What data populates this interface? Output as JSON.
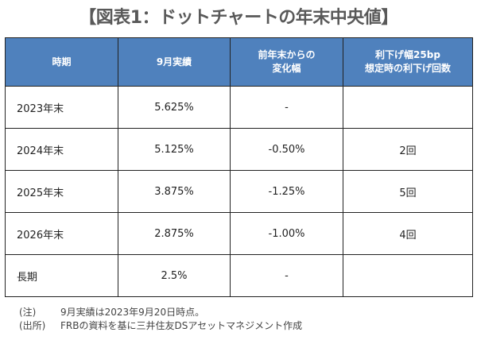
{
  "title": "【図表1：ドットチャートの年末中央値】",
  "table": {
    "headers": [
      "時期",
      "9月実績",
      "前年末からの\n変化幅",
      "利下げ幅25bp\n想定時の利下げ回数"
    ],
    "rows": [
      [
        "2023年末",
        "5.625%",
        "-",
        ""
      ],
      [
        "2024年末",
        "5.125%",
        "-0.50%",
        "2回"
      ],
      [
        "2025年末",
        "3.875%",
        "-1.25%",
        "5回"
      ],
      [
        "2026年末",
        "2.875%",
        "-1.00%",
        "4回"
      ],
      [
        "長期",
        "2.5%",
        "-",
        ""
      ]
    ]
  },
  "notes": [
    {
      "label": "(注)",
      "text": "9月実績は2023年9月20日時点。"
    },
    {
      "label": "(出所)",
      "text": "FRBの資料を基に三井住友DSアセットマネジメント作成"
    }
  ],
  "colors": {
    "header_bg": "#4f81bd",
    "title": "#595959"
  }
}
